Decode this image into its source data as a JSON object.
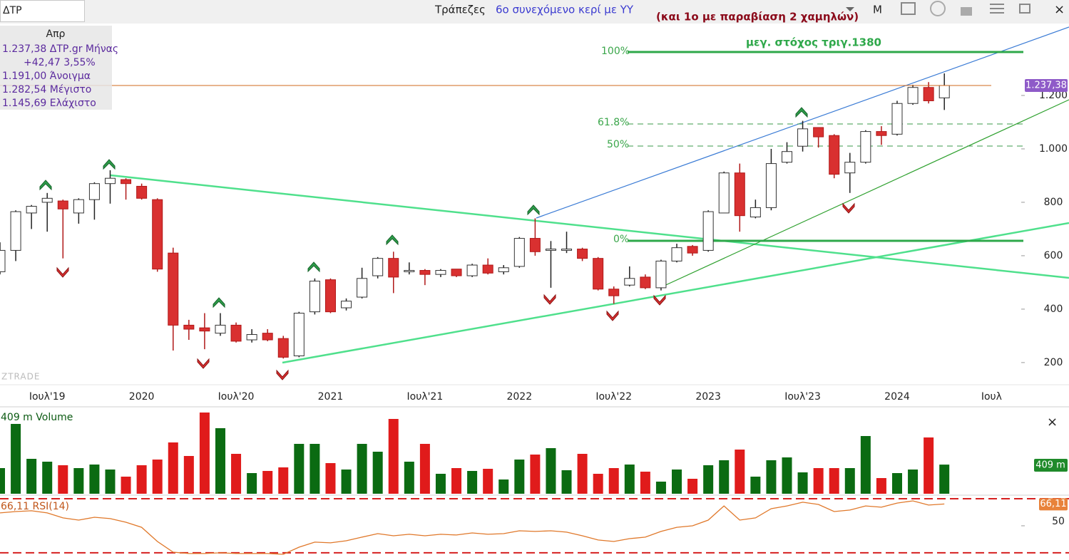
{
  "toolbar": {
    "symbol": "ΔΤΡ",
    "sector": "Τράπεζες",
    "note_blue": "6ο συνεχόμενο κερί με ΥΥ",
    "note_red": "(και 1ο με παραβίαση 2 χαμηλών)",
    "period_button": "M",
    "close": "×"
  },
  "info": {
    "month": "Απρ",
    "price": "1.237,38 ΔΤΡ.gr Μήνας",
    "change": "+42,47 3,55%",
    "open": "1.191,00 Άνοιγμα",
    "high": "1.282,54 Μέγιστο",
    "low": "1.145,69 Ελάχιστο"
  },
  "annotations": {
    "target": "μεγ. στόχος τριγ.1380",
    "fib_100": "100%",
    "fib_618": "61.8%",
    "fib_50": "50%",
    "fib_0": "0%"
  },
  "chart_data": [
    {
      "type": "candlestick",
      "watermark": "ZTRADE",
      "categories": [
        null,
        null,
        null,
        "Ιουλ'19",
        null,
        null,
        null,
        null,
        null,
        "2020",
        null,
        null,
        null,
        null,
        null,
        "Ιουλ'20",
        null,
        null,
        null,
        null,
        null,
        "2021",
        null,
        null,
        null,
        null,
        null,
        "Ιουλ'21",
        null,
        null,
        null,
        null,
        null,
        "2022",
        null,
        null,
        null,
        null,
        null,
        "Ιουλ'22",
        null,
        null,
        null,
        null,
        null,
        "2023",
        null,
        null,
        null,
        null,
        null,
        "Ιουλ'23",
        null,
        null,
        null,
        null,
        null,
        "2024",
        null,
        null,
        null,
        null,
        null,
        "Ιουλ",
        null,
        null,
        null,
        null
      ],
      "open": [
        540,
        620,
        760,
        800,
        805,
        760,
        810,
        870,
        885,
        860,
        810,
        610,
        340,
        330,
        310,
        340,
        285,
        310,
        290,
        225,
        390,
        510,
        405,
        445,
        525,
        590,
        540,
        545,
        530,
        550,
        525,
        565,
        540,
        560,
        665,
        620,
        620,
        625,
        590,
        475,
        490,
        520,
        480,
        580,
        635,
        620,
        760,
        910,
        745,
        780,
        950,
        1010,
        1080,
        1050,
        910,
        950,
        1065,
        1055,
        1170,
        1230,
        1191,
        null,
        null,
        null,
        null,
        null,
        null,
        null
      ],
      "high": [
        650,
        770,
        790,
        835,
        810,
        815,
        875,
        920,
        890,
        870,
        815,
        630,
        360,
        385,
        385,
        350,
        325,
        325,
        300,
        390,
        515,
        515,
        440,
        555,
        595,
        615,
        575,
        550,
        550,
        550,
        570,
        590,
        565,
        670,
        740,
        655,
        690,
        630,
        595,
        485,
        560,
        530,
        585,
        645,
        640,
        770,
        915,
        945,
        810,
        1000,
        1025,
        1105,
        1080,
        1055,
        985,
        1070,
        1085,
        1180,
        1240,
        1250,
        1282.54,
        null,
        null,
        null,
        null,
        null,
        null,
        null
      ],
      "low": [
        530,
        580,
        700,
        690,
        590,
        720,
        735,
        795,
        810,
        810,
        540,
        245,
        285,
        250,
        300,
        275,
        275,
        280,
        215,
        220,
        380,
        385,
        395,
        440,
        515,
        460,
        530,
        490,
        520,
        520,
        520,
        530,
        530,
        555,
        600,
        480,
        610,
        580,
        470,
        420,
        485,
        475,
        470,
        575,
        600,
        615,
        760,
        690,
        740,
        770,
        945,
        990,
        1005,
        890,
        835,
        945,
        1015,
        1050,
        1165,
        1170,
        1145.69,
        null,
        null,
        null,
        null,
        null,
        null,
        null
      ],
      "close": [
        620,
        765,
        785,
        815,
        775,
        810,
        870,
        890,
        870,
        815,
        550,
        340,
        325,
        318,
        340,
        280,
        305,
        285,
        220,
        385,
        505,
        390,
        430,
        515,
        590,
        520,
        545,
        530,
        545,
        525,
        565,
        535,
        555,
        665,
        615,
        625,
        625,
        590,
        475,
        450,
        515,
        480,
        580,
        630,
        610,
        765,
        910,
        750,
        780,
        945,
        990,
        1075,
        1045,
        905,
        950,
        1065,
        1050,
        1170,
        1230,
        1180,
        1237.38,
        null,
        null,
        null,
        null,
        null,
        null,
        null
      ],
      "last_label": "1.237,38",
      "up_color": "#ffffff",
      "down_color": "#d93030",
      "last_line_color": "#d2691e",
      "ylim": [
        117,
        1464
      ],
      "yticks": [
        200,
        400,
        600,
        800,
        {
          "value": 1000,
          "label": "1.000"
        },
        {
          "value": 1200,
          "label": "1.200"
        }
      ]
    },
    {
      "type": "bar",
      "legend": "409 m Volume",
      "values": [
        360,
        980,
        490,
        450,
        400,
        360,
        410,
        340,
        240,
        400,
        480,
        720,
        530,
        1140,
        920,
        560,
        290,
        320,
        370,
        700,
        700,
        430,
        340,
        700,
        590,
        1050,
        450,
        700,
        280,
        360,
        320,
        350,
        200,
        480,
        550,
        640,
        330,
        560,
        280,
        360,
        410,
        310,
        170,
        340,
        210,
        400,
        470,
        620,
        240,
        470,
        510,
        300,
        360,
        360,
        360,
        810,
        220,
        290,
        340,
        790,
        409
      ],
      "last_label": "409 m",
      "up_color": "#0b6b12",
      "down_color": "#e01b1b",
      "ylim": [
        0,
        1210
      ]
    },
    {
      "type": "line",
      "legend": "66,11 RSI(14)",
      "values": [
        59.5,
        60.5,
        61.1,
        59.5,
        55.8,
        54.2,
        56.3,
        55.3,
        52.6,
        48.9,
        38.4,
        30.5,
        29.5,
        29.5,
        30,
        29.5,
        29.5,
        29.5,
        28.9,
        34.2,
        37.9,
        37.4,
        38.9,
        41.6,
        44.2,
        42.6,
        43.7,
        42.6,
        43.7,
        43.2,
        44.7,
        43.7,
        44.2,
        46.3,
        45.8,
        46.3,
        45.3,
        42.6,
        39.5,
        38.4,
        40.5,
        41.6,
        45.8,
        48.9,
        50,
        54.2,
        64.7,
        54.2,
        55.8,
        62.6,
        64.7,
        67.4,
        65.8,
        60.5,
        61.6,
        64.7,
        63.7,
        66.8,
        68.4,
        65.3,
        66.11
      ],
      "last_label": "66,11",
      "color": "#e0782a",
      "level_color": "#d62020",
      "levels": [
        70,
        30
      ],
      "ylim": [
        24.7,
        72.1
      ],
      "yticks": [
        50
      ]
    }
  ]
}
